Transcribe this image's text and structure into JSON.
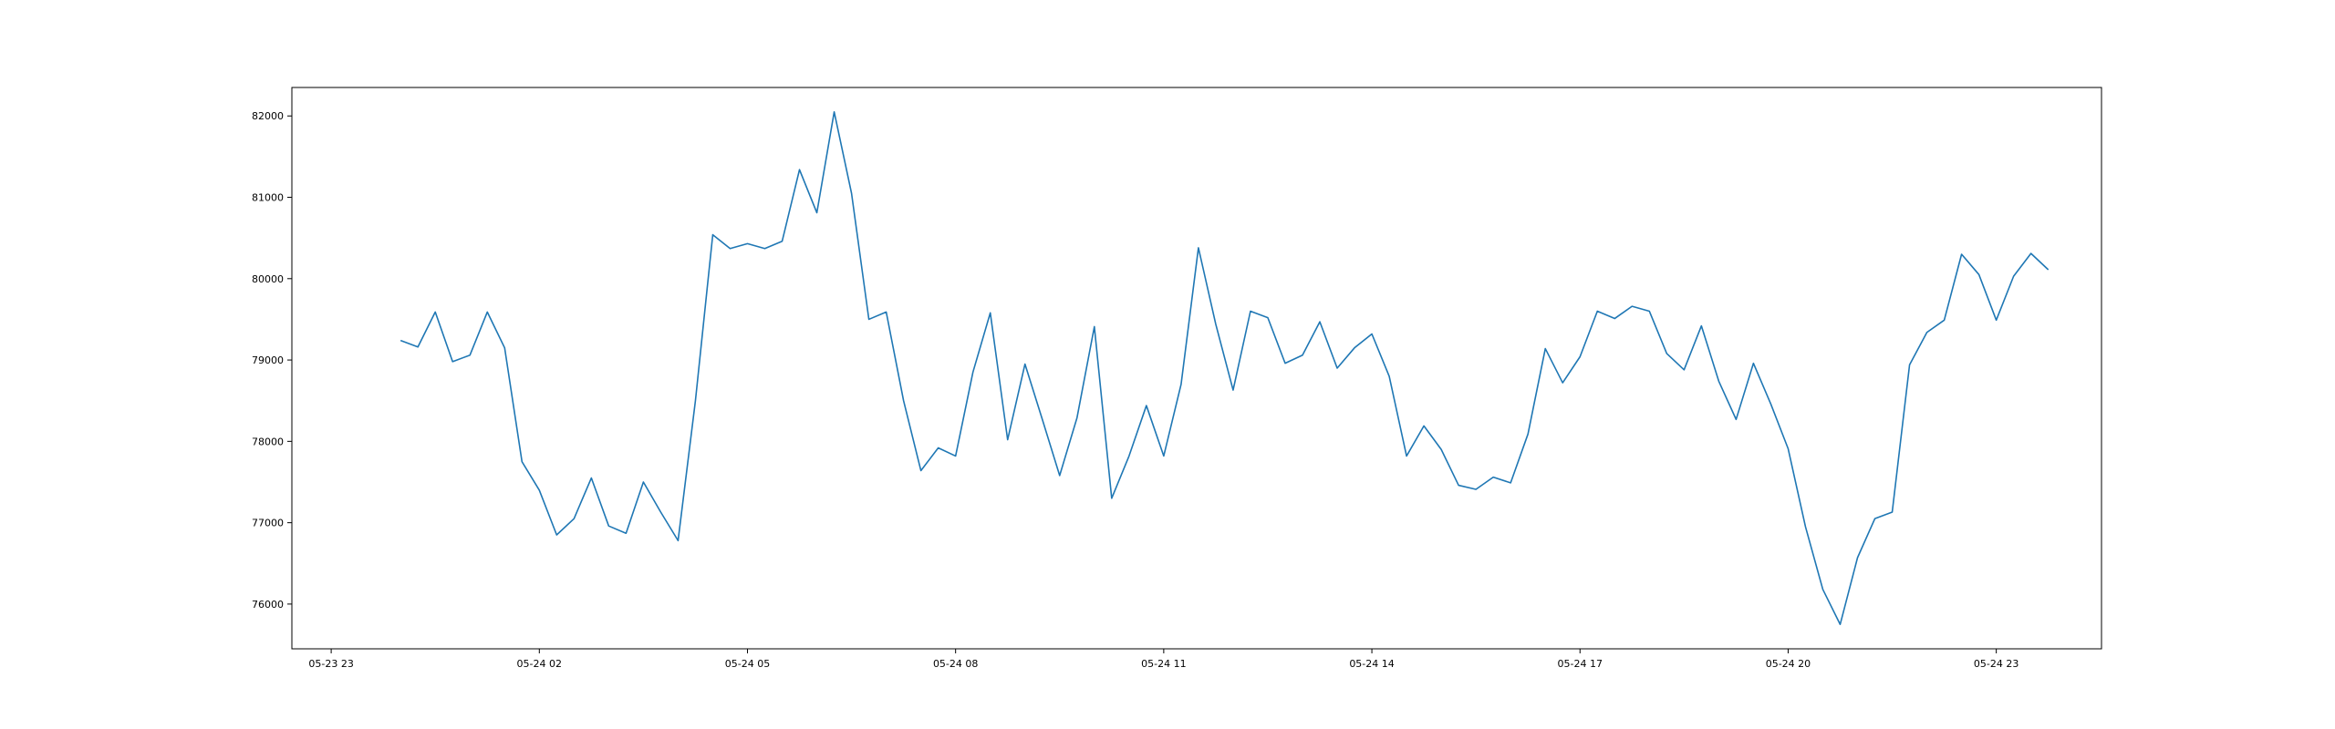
{
  "chart_data": {
    "type": "line",
    "title": "",
    "xlabel": "",
    "ylabel": "",
    "grid": false,
    "legend": "none",
    "line_color": "#1f77b4",
    "x_range": [
      "2025-05-23 22:26",
      "2025-05-25 00:31"
    ],
    "ylim": [
      75450,
      82350
    ],
    "x_ticks": [
      {
        "t": "2025-05-23 23:00",
        "label": "05-23 23"
      },
      {
        "t": "2025-05-24 02:00",
        "label": "05-24 02"
      },
      {
        "t": "2025-05-24 05:00",
        "label": "05-24 05"
      },
      {
        "t": "2025-05-24 08:00",
        "label": "05-24 08"
      },
      {
        "t": "2025-05-24 11:00",
        "label": "05-24 11"
      },
      {
        "t": "2025-05-24 14:00",
        "label": "05-24 14"
      },
      {
        "t": "2025-05-24 17:00",
        "label": "05-24 17"
      },
      {
        "t": "2025-05-24 20:00",
        "label": "05-24 20"
      },
      {
        "t": "2025-05-24 23:00",
        "label": "05-24 23"
      }
    ],
    "y_ticks": [
      {
        "v": 76000,
        "label": "76000"
      },
      {
        "v": 77000,
        "label": "77000"
      },
      {
        "v": 78000,
        "label": "78000"
      },
      {
        "v": 79000,
        "label": "79000"
      },
      {
        "v": 80000,
        "label": "80000"
      },
      {
        "v": 81000,
        "label": "81000"
      },
      {
        "v": 82000,
        "label": "82000"
      }
    ],
    "series": [
      {
        "x": [
          "2025-05-24 00:00",
          "2025-05-24 00:15",
          "2025-05-24 00:30",
          "2025-05-24 00:45",
          "2025-05-24 01:00",
          "2025-05-24 01:15",
          "2025-05-24 01:30",
          "2025-05-24 01:45",
          "2025-05-24 02:00",
          "2025-05-24 02:15",
          "2025-05-24 02:30",
          "2025-05-24 02:45",
          "2025-05-24 03:00",
          "2025-05-24 03:15",
          "2025-05-24 03:30",
          "2025-05-24 03:45",
          "2025-05-24 04:00",
          "2025-05-24 04:15",
          "2025-05-24 04:30",
          "2025-05-24 04:45",
          "2025-05-24 05:00",
          "2025-05-24 05:15",
          "2025-05-24 05:30",
          "2025-05-24 05:45",
          "2025-05-24 06:00",
          "2025-05-24 06:15",
          "2025-05-24 06:30",
          "2025-05-24 06:45",
          "2025-05-24 07:00",
          "2025-05-24 07:15",
          "2025-05-24 07:30",
          "2025-05-24 07:45",
          "2025-05-24 08:00",
          "2025-05-24 08:15",
          "2025-05-24 08:30",
          "2025-05-24 08:45",
          "2025-05-24 09:00",
          "2025-05-24 09:15",
          "2025-05-24 09:30",
          "2025-05-24 09:45",
          "2025-05-24 10:00",
          "2025-05-24 10:15",
          "2025-05-24 10:30",
          "2025-05-24 10:45",
          "2025-05-24 11:00",
          "2025-05-24 11:15",
          "2025-05-24 11:30",
          "2025-05-24 11:45",
          "2025-05-24 12:00",
          "2025-05-24 12:15",
          "2025-05-24 12:30",
          "2025-05-24 12:45",
          "2025-05-24 13:00",
          "2025-05-24 13:15",
          "2025-05-24 13:30",
          "2025-05-24 13:45",
          "2025-05-24 14:00",
          "2025-05-24 14:15",
          "2025-05-24 14:30",
          "2025-05-24 14:45",
          "2025-05-24 15:00",
          "2025-05-24 15:15",
          "2025-05-24 15:30",
          "2025-05-24 15:45",
          "2025-05-24 16:00",
          "2025-05-24 16:15",
          "2025-05-24 16:30",
          "2025-05-24 16:45",
          "2025-05-24 17:00",
          "2025-05-24 17:15",
          "2025-05-24 17:30",
          "2025-05-24 17:45",
          "2025-05-24 18:00",
          "2025-05-24 18:15",
          "2025-05-24 18:30",
          "2025-05-24 18:45",
          "2025-05-24 19:00",
          "2025-05-24 19:15",
          "2025-05-24 19:30",
          "2025-05-24 19:45",
          "2025-05-24 20:00",
          "2025-05-24 20:15",
          "2025-05-24 20:30",
          "2025-05-24 20:45",
          "2025-05-24 21:00",
          "2025-05-24 21:15",
          "2025-05-24 21:30",
          "2025-05-24 21:45",
          "2025-05-24 22:00",
          "2025-05-24 22:15",
          "2025-05-24 22:30",
          "2025-05-24 22:45",
          "2025-05-24 23:00",
          "2025-05-24 23:15",
          "2025-05-24 23:30",
          "2025-05-24 23:45"
        ],
        "values": [
          79240,
          79160,
          79590,
          78980,
          79060,
          79590,
          79150,
          77750,
          77400,
          76850,
          77050,
          77550,
          76960,
          76870,
          77500,
          77130,
          76780,
          78500,
          80540,
          80370,
          80430,
          80370,
          80460,
          81340,
          80810,
          82050,
          81050,
          79500,
          79590,
          78500,
          77640,
          77920,
          77820,
          78850,
          79580,
          78020,
          78950,
          78270,
          77580,
          78290,
          79410,
          77300,
          77820,
          78440,
          77820,
          78700,
          80380,
          79440,
          78630,
          79600,
          79520,
          78960,
          79060,
          79470,
          78900,
          79150,
          79320,
          78800,
          77820,
          78190,
          77900,
          77460,
          77410,
          77560,
          77490,
          78090,
          79140,
          78720,
          79040,
          79600,
          79510,
          79660,
          79600,
          79080,
          78880,
          79420,
          78740,
          78270,
          78960,
          78460,
          77910,
          76950,
          76180,
          75750,
          76570,
          77050,
          77130,
          78940,
          79340,
          79490,
          80300,
          80050,
          79490,
          80030,
          80310,
          80110
        ]
      }
    ]
  }
}
